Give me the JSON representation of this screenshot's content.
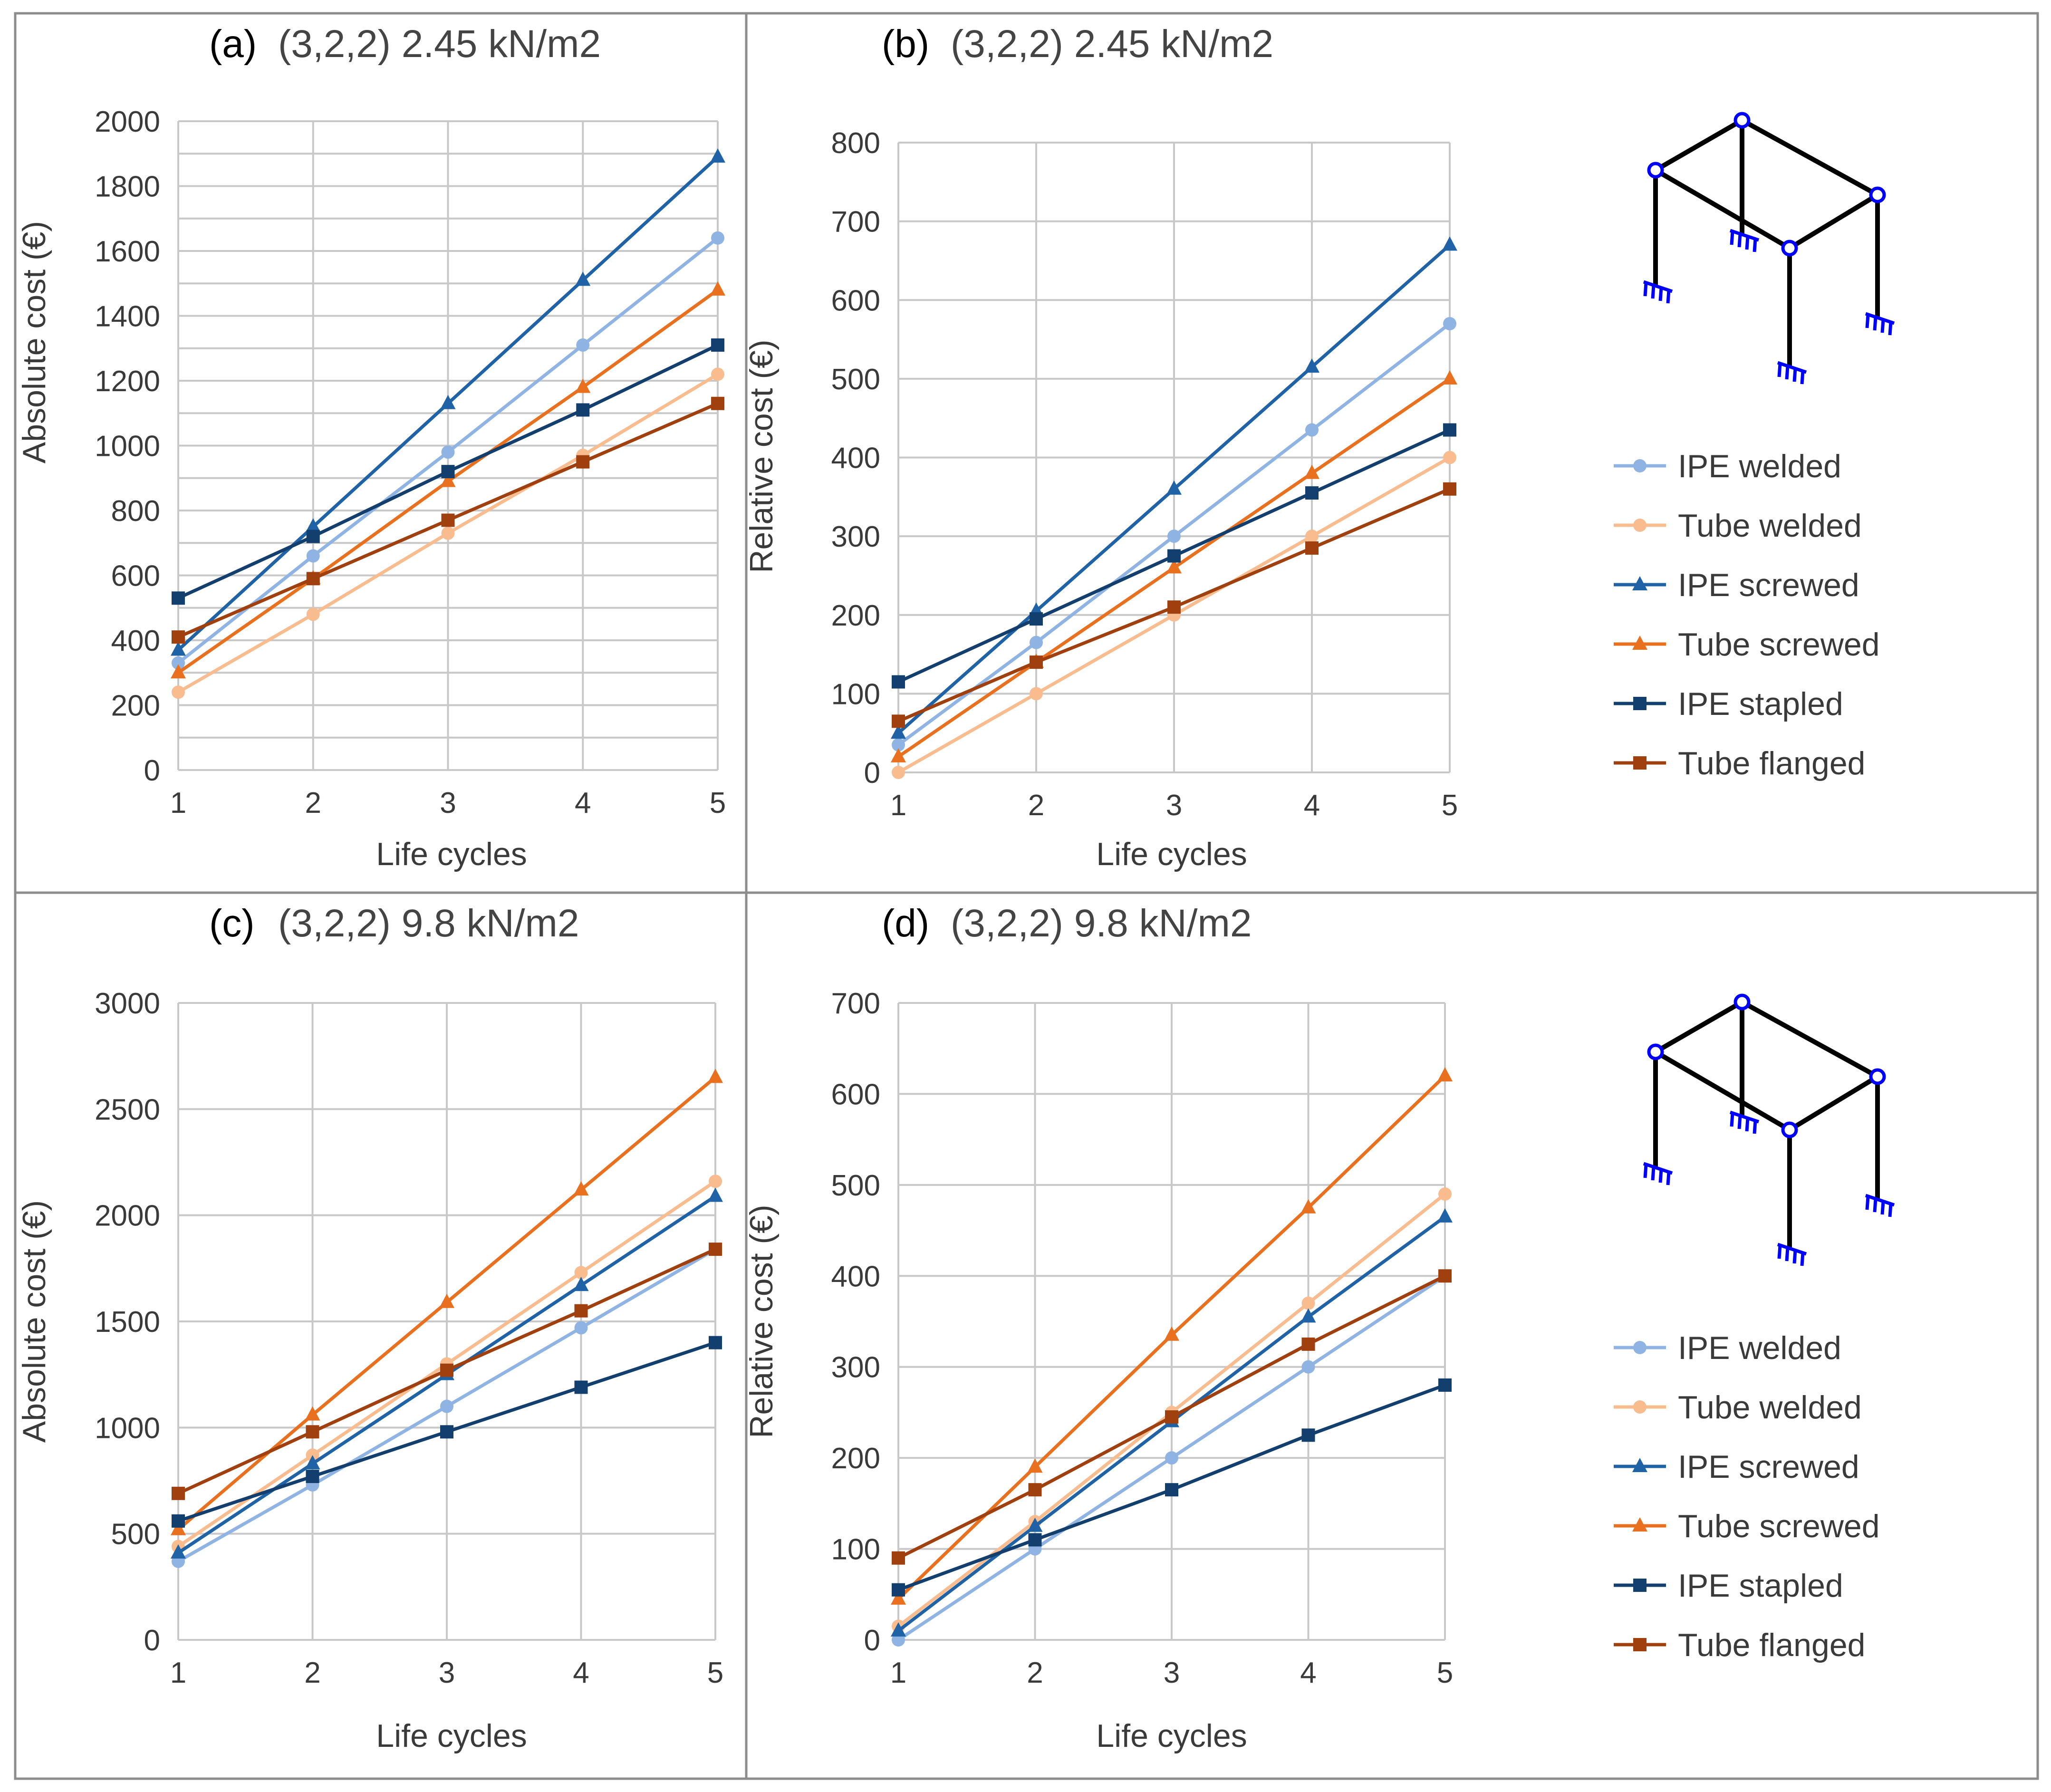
{
  "chart_data": [
    {
      "type": "line",
      "title_prefix": "(a)",
      "title": "(3,2,2) 2.45 kN/m2",
      "xlabel": "Life cycles",
      "ylabel": "Absolute cost (€)",
      "ylim": [
        0,
        2000
      ],
      "yticks": [
        0,
        200,
        400,
        600,
        800,
        1000,
        1200,
        1400,
        1600,
        1800,
        2000
      ],
      "x": [
        1,
        2,
        3,
        4,
        5
      ],
      "grid": true,
      "series": [
        {
          "name": "IPE welded",
          "marker": "circle",
          "values": [
            330,
            660,
            980,
            1310,
            1640
          ]
        },
        {
          "name": "Tube welded",
          "marker": "circle",
          "values": [
            240,
            480,
            730,
            970,
            1220
          ]
        },
        {
          "name": "IPE screwed",
          "marker": "triangle",
          "values": [
            370,
            750,
            1130,
            1510,
            1890
          ]
        },
        {
          "name": "Tube screwed",
          "marker": "triangle",
          "values": [
            300,
            590,
            890,
            1180,
            1480
          ]
        },
        {
          "name": "IPE stapled",
          "marker": "square",
          "values": [
            530,
            720,
            920,
            1110,
            1310
          ]
        },
        {
          "name": "Tube flanged",
          "marker": "square",
          "values": [
            410,
            590,
            770,
            950,
            1130
          ]
        }
      ]
    },
    {
      "type": "line",
      "title_prefix": "(b)",
      "title": "(3,2,2) 2.45 kN/m2",
      "xlabel": "Life cycles",
      "ylabel": "Relative cost (€)",
      "ylim": [
        0,
        800
      ],
      "yticks": [
        0,
        100,
        200,
        300,
        400,
        500,
        600,
        700,
        800
      ],
      "x": [
        1,
        2,
        3,
        4,
        5
      ],
      "grid": true,
      "series": [
        {
          "name": "IPE welded",
          "marker": "circle",
          "values": [
            35,
            165,
            300,
            435,
            570
          ]
        },
        {
          "name": "Tube welded",
          "marker": "circle",
          "values": [
            0,
            100,
            200,
            300,
            400
          ]
        },
        {
          "name": "IPE screwed",
          "marker": "triangle",
          "values": [
            50,
            205,
            360,
            515,
            670
          ]
        },
        {
          "name": "Tube screwed",
          "marker": "triangle",
          "values": [
            20,
            140,
            260,
            380,
            500
          ]
        },
        {
          "name": "IPE stapled",
          "marker": "square",
          "values": [
            115,
            195,
            275,
            355,
            435
          ]
        },
        {
          "name": "Tube flanged",
          "marker": "square",
          "values": [
            65,
            140,
            210,
            285,
            360
          ]
        }
      ]
    },
    {
      "type": "line",
      "title_prefix": "(c)",
      "title": "(3,2,2) 9.8 kN/m2",
      "xlabel": "Life cycles",
      "ylabel": "Absolute cost (€)",
      "ylim": [
        0,
        3000
      ],
      "yticks": [
        0,
        500,
        1000,
        1500,
        2000,
        2500,
        3000
      ],
      "x": [
        1,
        2,
        3,
        4,
        5
      ],
      "grid": true,
      "series": [
        {
          "name": "IPE welded",
          "marker": "circle",
          "values": [
            370,
            730,
            1100,
            1470,
            1840
          ]
        },
        {
          "name": "Tube welded",
          "marker": "circle",
          "values": [
            440,
            870,
            1300,
            1730,
            2160
          ]
        },
        {
          "name": "IPE screwed",
          "marker": "triangle",
          "values": [
            410,
            830,
            1250,
            1670,
            2090
          ]
        },
        {
          "name": "Tube screwed",
          "marker": "triangle",
          "values": [
            520,
            1060,
            1590,
            2120,
            2650
          ]
        },
        {
          "name": "IPE stapled",
          "marker": "square",
          "values": [
            560,
            770,
            980,
            1190,
            1400
          ]
        },
        {
          "name": "Tube flanged",
          "marker": "square",
          "values": [
            690,
            980,
            1270,
            1550,
            1840
          ]
        }
      ]
    },
    {
      "type": "line",
      "title_prefix": "(d)",
      "title": "(3,2,2) 9.8 kN/m2",
      "xlabel": "Life cycles",
      "ylabel": "Relative cost (€)",
      "ylim": [
        0,
        700
      ],
      "yticks": [
        0,
        100,
        200,
        300,
        400,
        500,
        600,
        700
      ],
      "x": [
        1,
        2,
        3,
        4,
        5
      ],
      "grid": true,
      "series": [
        {
          "name": "IPE welded",
          "marker": "circle",
          "values": [
            0,
            100,
            200,
            300,
            400
          ]
        },
        {
          "name": "Tube welded",
          "marker": "circle",
          "values": [
            15,
            130,
            250,
            370,
            490
          ]
        },
        {
          "name": "IPE screwed",
          "marker": "triangle",
          "values": [
            10,
            125,
            240,
            355,
            465
          ]
        },
        {
          "name": "Tube screwed",
          "marker": "triangle",
          "values": [
            45,
            190,
            335,
            475,
            620
          ]
        },
        {
          "name": "IPE stapled",
          "marker": "square",
          "values": [
            55,
            110,
            165,
            225,
            280
          ]
        },
        {
          "name": "Tube flanged",
          "marker": "square",
          "values": [
            90,
            165,
            245,
            325,
            400
          ]
        }
      ]
    }
  ],
  "legend": [
    "IPE welded",
    "Tube welded",
    "IPE screwed",
    "Tube screwed",
    "IPE stapled",
    "Tube flanged"
  ],
  "colors": {
    "IPE welded": "#8fb4e3",
    "Tube welded": "#f8bc8e",
    "IPE screwed": "#1f63a6",
    "Tube screwed": "#e8701e",
    "IPE stapled": "#133f6e",
    "Tube flanged": "#a0400e",
    "grid": "#c8c8c8",
    "text": "#3a3a3a",
    "frame": "#8c8c8c",
    "diagram_line": "#000000",
    "diagram_joint": "#0000ff"
  }
}
